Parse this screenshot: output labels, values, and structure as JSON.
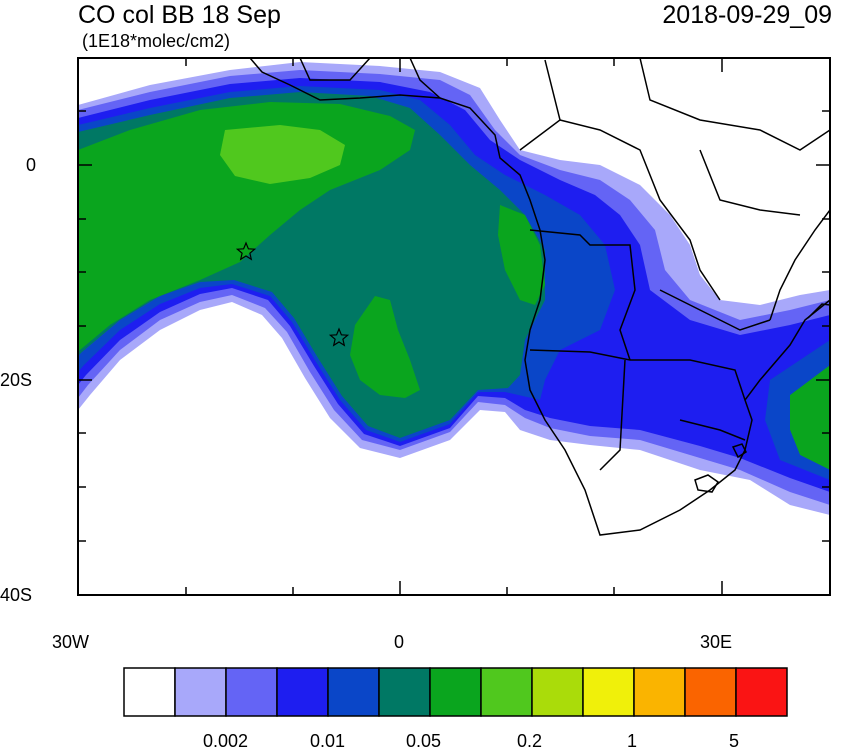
{
  "header": {
    "title": "CO col BB 18 Sep",
    "units": "(1E18*molec/cm2)",
    "valid_time": "2018-09-29_09"
  },
  "axes": {
    "y_ticks": [
      "0",
      "20S",
      "40S"
    ],
    "x_ticks": [
      "30W",
      "0",
      "30E"
    ]
  },
  "markers": [
    {
      "name": "source-star-1",
      "lon": -14.5,
      "lat": -8
    },
    {
      "name": "source-star-2",
      "lon": -5.7,
      "lat": -16
    }
  ],
  "colorbar": {
    "colors": [
      "#ffffff",
      "#a8a8fa",
      "#6464f5",
      "#1e1ef0",
      "#0a46c8",
      "#007864",
      "#0aa51e",
      "#50c81e",
      "#aadc0a",
      "#f0f00a",
      "#fab400",
      "#fa6400",
      "#fa1414"
    ],
    "labels": [
      "0.002",
      "0.01",
      "0.05",
      "0.2",
      "1",
      "5"
    ]
  }
}
